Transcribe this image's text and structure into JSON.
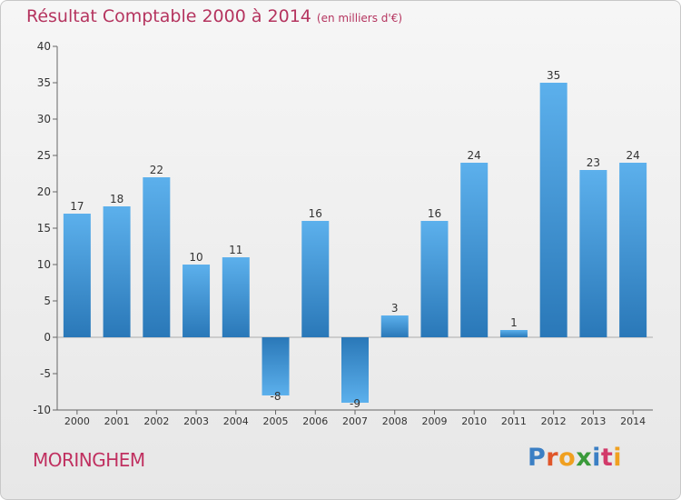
{
  "title": "Résultat Comptable 2000 à 2014",
  "subtitle": "(en milliers d'€)",
  "location": "MORINGHEM",
  "logo": {
    "brand": "Proxiti",
    "letters": [
      "P",
      "r",
      "o",
      "x",
      "i",
      "t",
      "i"
    ],
    "colors": [
      "#3b7fc4",
      "#e0562a",
      "#f0a020",
      "#3a9a3a",
      "#3b7fc4",
      "#d23a6a",
      "#f0a020"
    ]
  },
  "chart_data": {
    "type": "bar",
    "categories": [
      "2000",
      "2001",
      "2002",
      "2003",
      "2004",
      "2005",
      "2006",
      "2007",
      "2008",
      "2009",
      "2010",
      "2011",
      "2012",
      "2013",
      "2014"
    ],
    "values": [
      17,
      18,
      22,
      10,
      11,
      -8,
      16,
      -9,
      3,
      16,
      24,
      1,
      35,
      23,
      24
    ],
    "ylim": [
      -10,
      40
    ],
    "yticks": [
      -10,
      -5,
      0,
      5,
      10,
      15,
      20,
      25,
      30,
      35,
      40
    ],
    "grid": false,
    "bar_color": "#3f93d6",
    "xlabel": "",
    "ylabel": ""
  }
}
